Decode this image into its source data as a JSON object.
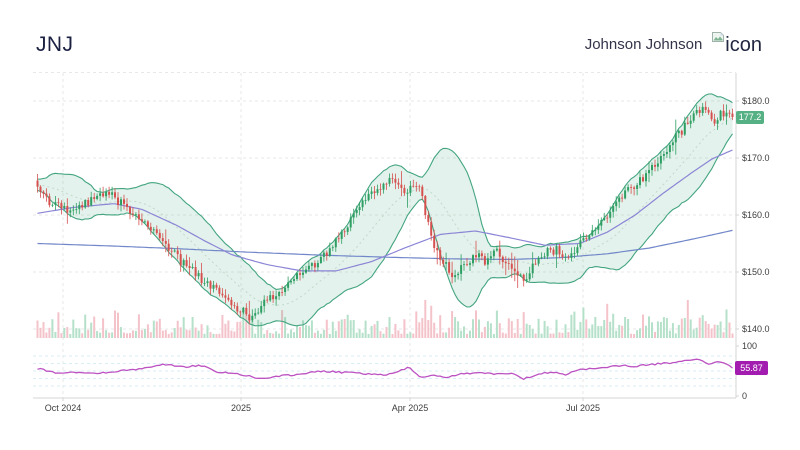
{
  "header": {
    "symbol": "JNJ",
    "company": "Johnson Johnson",
    "logo_alt": "icon"
  },
  "chart_data": {
    "type": "candlestick",
    "title": "JNJ daily candlestick chart with Bollinger Bands (20,2), 50-day and 200-day moving averages, volume and RSI",
    "symbol": "JNJ",
    "last_close": 177.2,
    "price_badge": {
      "label": "177.2"
    },
    "price_axis": {
      "ticks": [
        {
          "label": "$180.0",
          "value": 180
        },
        {
          "label": "$170.0",
          "value": 170
        },
        {
          "label": "$160.0",
          "value": 160
        },
        {
          "label": "$150.0",
          "value": 150
        },
        {
          "label": "$140.0",
          "value": 140
        }
      ],
      "grid_values": [
        185,
        180,
        170,
        160,
        150,
        140
      ],
      "range": [
        138,
        184.9
      ]
    },
    "x_ticks": [
      {
        "label": "Oct 2024",
        "f": 0.0387
      },
      {
        "label": "2025",
        "f": 0.2937
      },
      {
        "label": "Apr 2025",
        "f": 0.5358
      },
      {
        "label": "Jul 2025",
        "f": 0.7837
      }
    ],
    "num_candles": 234,
    "close_anchors": [
      [
        0,
        165.5
      ],
      [
        0.01,
        163
      ],
      [
        0.03,
        161.3
      ],
      [
        0.05,
        160.8
      ],
      [
        0.07,
        162.2
      ],
      [
        0.09,
        163.6
      ],
      [
        0.11,
        163.2
      ],
      [
        0.13,
        160.8
      ],
      [
        0.15,
        158.8
      ],
      [
        0.17,
        156.5
      ],
      [
        0.19,
        153.8
      ],
      [
        0.21,
        151.5
      ],
      [
        0.24,
        148.5
      ],
      [
        0.27,
        145
      ],
      [
        0.29,
        143.5
      ],
      [
        0.305,
        142
      ],
      [
        0.32,
        143.8
      ],
      [
        0.34,
        146
      ],
      [
        0.36,
        147.5
      ],
      [
        0.38,
        150
      ],
      [
        0.4,
        151.5
      ],
      [
        0.42,
        154
      ],
      [
        0.44,
        157.5
      ],
      [
        0.46,
        160.5
      ],
      [
        0.475,
        163
      ],
      [
        0.49,
        165
      ],
      [
        0.505,
        166
      ],
      [
        0.52,
        164.8
      ],
      [
        0.533,
        163.5
      ],
      [
        0.543,
        166.3
      ],
      [
        0.553,
        163.5
      ],
      [
        0.563,
        157.5
      ],
      [
        0.575,
        153.5
      ],
      [
        0.59,
        151
      ],
      [
        0.6,
        149.3
      ],
      [
        0.615,
        151.5
      ],
      [
        0.63,
        153
      ],
      [
        0.645,
        151.5
      ],
      [
        0.66,
        153.8
      ],
      [
        0.675,
        151.8
      ],
      [
        0.69,
        149.8
      ],
      [
        0.7,
        148.6
      ],
      [
        0.715,
        151.5
      ],
      [
        0.73,
        153.2
      ],
      [
        0.745,
        154
      ],
      [
        0.757,
        152
      ],
      [
        0.77,
        153.6
      ],
      [
        0.785,
        155.8
      ],
      [
        0.8,
        157.2
      ],
      [
        0.815,
        159.5
      ],
      [
        0.83,
        161.8
      ],
      [
        0.845,
        163.8
      ],
      [
        0.86,
        165.5
      ],
      [
        0.875,
        167
      ],
      [
        0.89,
        169
      ],
      [
        0.905,
        171.5
      ],
      [
        0.92,
        174
      ],
      [
        0.935,
        176
      ],
      [
        0.948,
        178.2
      ],
      [
        0.957,
        179
      ],
      [
        0.966,
        177.2
      ],
      [
        0.975,
        176.2
      ],
      [
        0.985,
        178
      ],
      [
        0.993,
        177.6
      ],
      [
        1,
        177.2
      ]
    ],
    "bollinger": {
      "window": 20,
      "stdev_mult": 2
    },
    "sma50_anchors": [
      [
        0,
        160.3
      ],
      [
        0.05,
        161.3
      ],
      [
        0.11,
        162
      ],
      [
        0.15,
        161
      ],
      [
        0.2,
        158.2
      ],
      [
        0.24,
        155.5
      ],
      [
        0.28,
        153
      ],
      [
        0.33,
        151.3
      ],
      [
        0.38,
        150.2
      ],
      [
        0.43,
        150.2
      ],
      [
        0.48,
        151.8
      ],
      [
        0.53,
        154.3
      ],
      [
        0.58,
        156.6
      ],
      [
        0.63,
        157.2
      ],
      [
        0.68,
        156
      ],
      [
        0.73,
        154.7
      ],
      [
        0.78,
        155
      ],
      [
        0.82,
        157
      ],
      [
        0.86,
        160
      ],
      [
        0.9,
        163.8
      ],
      [
        0.94,
        167.3
      ],
      [
        0.97,
        169.8
      ],
      [
        1,
        171.4
      ]
    ],
    "sma200_anchors": [
      [
        0,
        155
      ],
      [
        0.1,
        154.6
      ],
      [
        0.2,
        154.1
      ],
      [
        0.3,
        153.5
      ],
      [
        0.4,
        153
      ],
      [
        0.5,
        152.6
      ],
      [
        0.6,
        152.3
      ],
      [
        0.68,
        152.2
      ],
      [
        0.75,
        152.5
      ],
      [
        0.82,
        153.2
      ],
      [
        0.88,
        154.2
      ],
      [
        0.94,
        155.7
      ],
      [
        1,
        157.3
      ]
    ],
    "volume_spikes": [
      [
        0.21,
        0.55
      ],
      [
        0.3,
        0.6
      ],
      [
        0.44,
        0.5
      ],
      [
        0.505,
        0.55
      ],
      [
        0.543,
        0.7
      ],
      [
        0.557,
        1.0
      ],
      [
        0.567,
        0.85
      ],
      [
        0.58,
        0.6
      ],
      [
        0.6,
        0.55
      ],
      [
        0.69,
        0.5
      ],
      [
        0.73,
        0.45
      ],
      [
        0.785,
        0.8
      ],
      [
        0.82,
        0.9
      ],
      [
        0.85,
        0.5
      ],
      [
        0.9,
        0.55
      ],
      [
        0.935,
        1.0
      ],
      [
        0.955,
        0.6
      ],
      [
        0.99,
        0.75
      ]
    ],
    "rsi": {
      "range": [
        0,
        100
      ],
      "axis_ticks": [
        {
          "label": "100",
          "value": 100
        },
        {
          "label": "0",
          "value": 0
        }
      ],
      "grid_values": [
        80,
        65,
        50,
        35,
        20
      ],
      "badge": {
        "label": "55.87"
      },
      "last_value": 55.87,
      "anchors": [
        [
          0,
          55
        ],
        [
          0.03,
          45
        ],
        [
          0.06,
          48
        ],
        [
          0.09,
          46
        ],
        [
          0.12,
          50
        ],
        [
          0.15,
          55
        ],
        [
          0.18,
          63
        ],
        [
          0.21,
          58
        ],
        [
          0.235,
          61
        ],
        [
          0.26,
          48
        ],
        [
          0.29,
          44
        ],
        [
          0.32,
          35
        ],
        [
          0.35,
          40
        ],
        [
          0.38,
          44
        ],
        [
          0.41,
          50
        ],
        [
          0.44,
          47
        ],
        [
          0.47,
          45
        ],
        [
          0.5,
          42
        ],
        [
          0.52,
          50
        ],
        [
          0.535,
          58
        ],
        [
          0.55,
          38
        ],
        [
          0.57,
          42
        ],
        [
          0.59,
          38
        ],
        [
          0.61,
          45
        ],
        [
          0.64,
          47
        ],
        [
          0.66,
          44
        ],
        [
          0.68,
          46
        ],
        [
          0.7,
          34
        ],
        [
          0.72,
          44
        ],
        [
          0.74,
          48
        ],
        [
          0.76,
          43
        ],
        [
          0.78,
          52
        ],
        [
          0.8,
          55
        ],
        [
          0.82,
          58
        ],
        [
          0.84,
          61
        ],
        [
          0.86,
          59
        ],
        [
          0.88,
          63
        ],
        [
          0.9,
          65
        ],
        [
          0.92,
          68
        ],
        [
          0.94,
          71
        ],
        [
          0.955,
          74
        ],
        [
          0.965,
          62
        ],
        [
          0.975,
          66
        ],
        [
          0.985,
          69
        ],
        [
          0.993,
          64
        ],
        [
          1,
          55.87
        ]
      ]
    },
    "colors": {
      "up": "#2f9e63",
      "down": "#d5504e",
      "vol_up": "#b5e0c9",
      "vol_down": "#f4c3ca",
      "band_line": "#43a580",
      "band_fill": "rgba(67,165,128,0.15)",
      "sma20": "#c3d8cc",
      "sma50": "#8b85d6",
      "sma200": "#7187c9",
      "rsi_line": "#bc52c2",
      "grid": "#eae7e7",
      "rsi_grid": "#d9edf6",
      "axis": "#d6d6d6",
      "tick_text": "#3d3d3d",
      "price_badge_bg": "#55b183",
      "rsi_badge_bg": "#a21caf"
    }
  }
}
